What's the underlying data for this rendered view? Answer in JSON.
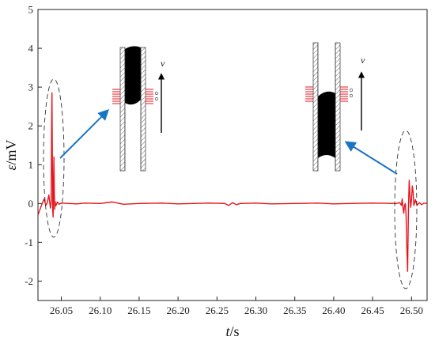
{
  "chart_data": {
    "type": "line",
    "title": "",
    "xlabel_symbol": "t",
    "xlabel_unit": "/s",
    "ylabel_symbol": "ε",
    "ylabel_unit": "/mV",
    "xlim": [
      26.02,
      26.52
    ],
    "ylim": [
      -2.5,
      5
    ],
    "xticks": [
      "26.05",
      "26.10",
      "26.15",
      "26.20",
      "26.25",
      "26.30",
      "26.35",
      "26.40",
      "26.45",
      "26.50"
    ],
    "yticks": [
      "-2",
      "-1",
      "0",
      "1",
      "2",
      "3",
      "4",
      "5"
    ],
    "grid": false,
    "series": [
      {
        "color": "#e8141c",
        "x": [
          26.02,
          26.025,
          26.028,
          26.03,
          26.032,
          26.034,
          26.036,
          26.037,
          26.0375,
          26.038,
          26.0385,
          26.039,
          26.0395,
          26.04,
          26.0405,
          26.041,
          26.0415,
          26.042,
          26.043,
          26.045,
          26.047,
          26.05,
          26.06,
          26.07,
          26.08,
          26.1,
          26.115,
          26.12,
          26.13,
          26.15,
          26.18,
          26.2,
          26.22,
          26.24,
          26.26,
          26.265,
          26.27,
          26.275,
          26.28,
          26.3,
          26.32,
          26.35,
          26.38,
          26.4,
          26.42,
          26.45,
          26.48,
          26.485,
          26.487,
          26.488,
          26.489,
          26.49,
          26.491,
          26.492,
          26.493,
          26.494,
          26.495,
          26.496,
          26.497,
          26.498,
          26.499,
          26.5,
          26.501,
          26.502,
          26.503,
          26.505,
          26.507,
          26.51,
          26.513,
          26.516,
          26.52
        ],
        "y": [
          -0.3,
          -0.02,
          0.12,
          -0.05,
          0.02,
          0.22,
          -0.12,
          0.05,
          1.9,
          2.85,
          1.2,
          -0.2,
          -0.35,
          0.5,
          1.2,
          0.3,
          -0.15,
          0.05,
          -0.06,
          0.04,
          -0.02,
          0.01,
          0.0,
          -0.01,
          0.01,
          0.0,
          0.04,
          0.02,
          -0.02,
          0.0,
          0.01,
          -0.01,
          0.0,
          0.01,
          0.0,
          -0.05,
          0.02,
          -0.03,
          0.0,
          0.01,
          -0.01,
          0.0,
          0.01,
          -0.01,
          0.0,
          0.01,
          0.0,
          0.02,
          -0.05,
          0.12,
          -0.1,
          -0.25,
          -0.05,
          0.0,
          -0.3,
          -1.15,
          -1.75,
          -0.2,
          0.6,
          0.2,
          -0.1,
          0.1,
          0.45,
          0.3,
          -0.05,
          0.1,
          -0.05,
          0.02,
          -0.03,
          0.01,
          0.0
        ]
      }
    ]
  },
  "colors": {
    "signal": "#e8141c",
    "arrow": "#1a74c4",
    "slug": "#000000",
    "coil": "#e8141c",
    "frame": "#222222"
  },
  "insets": [
    {
      "velocity_label": "v"
    },
    {
      "velocity_label": "v"
    }
  ]
}
